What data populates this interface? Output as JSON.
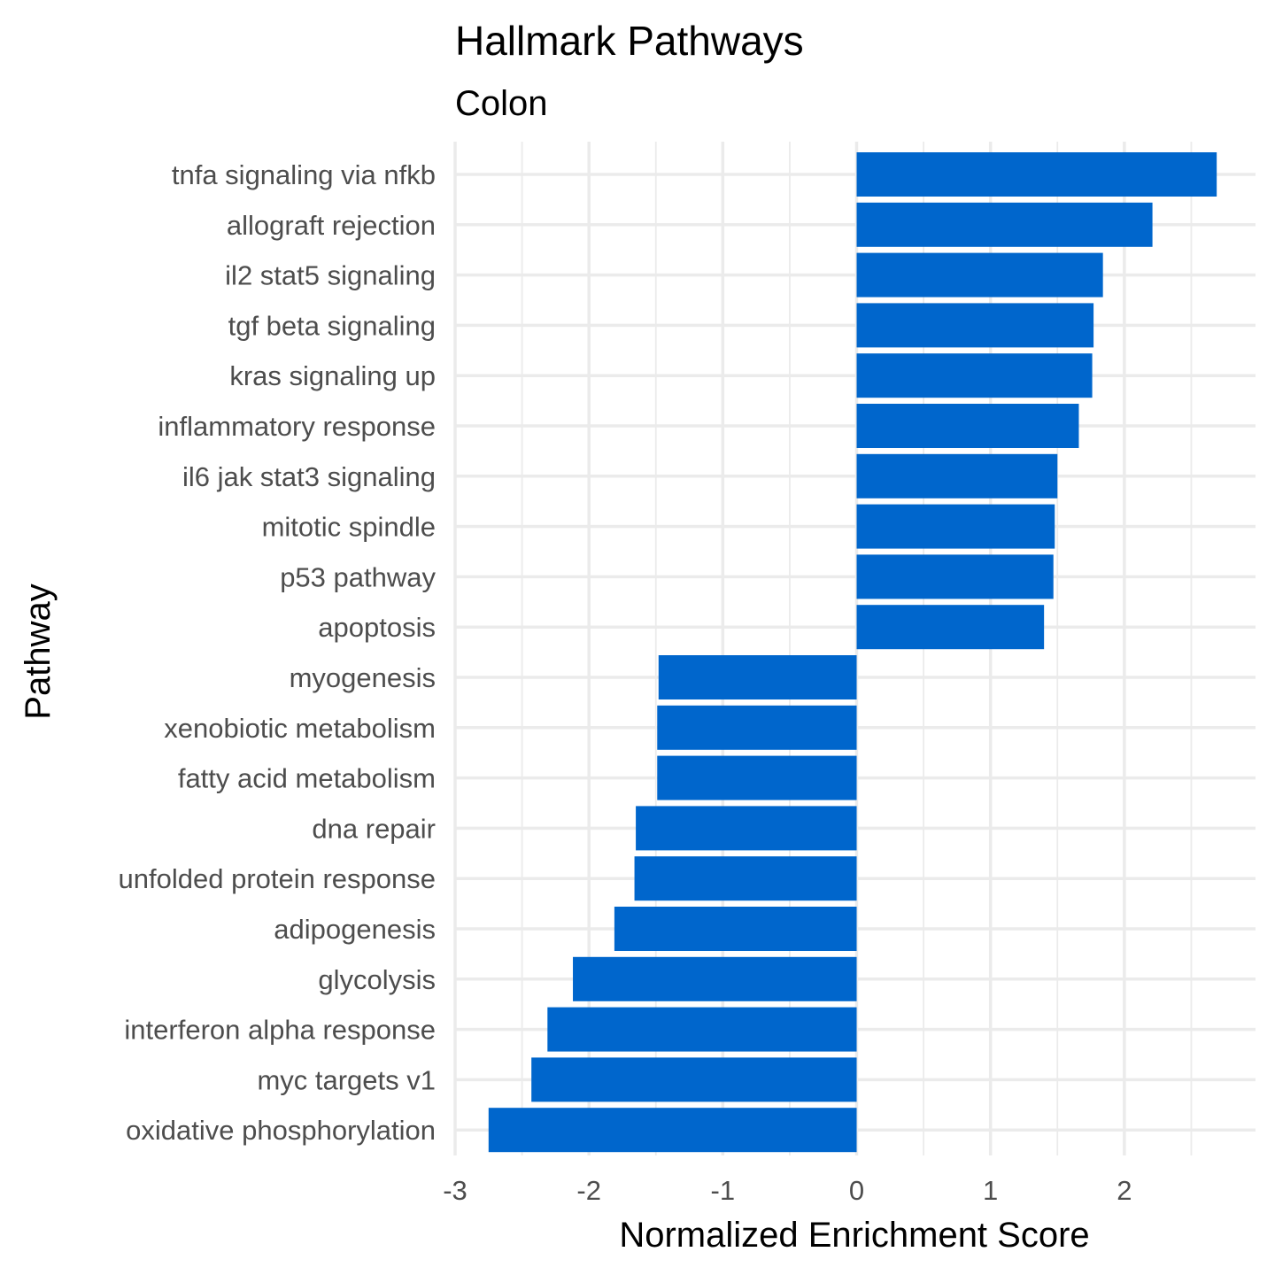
{
  "chart_data": {
    "type": "bar",
    "orientation": "horizontal",
    "title": "Hallmark Pathways",
    "subtitle": "Colon",
    "xlabel": "Normalized Enrichment Score",
    "ylabel": "Pathway",
    "categories": [
      "tnfa signaling via nfkb",
      "allograft rejection",
      "il2 stat5 signaling",
      "tgf beta signaling",
      "kras signaling up",
      "inflammatory response",
      "il6 jak stat3 signaling",
      "mitotic spindle",
      "p53 pathway",
      "apoptosis",
      "myogenesis",
      "xenobiotic metabolism",
      "fatty acid metabolism",
      "dna repair",
      "unfolded protein response",
      "adipogenesis",
      "glycolysis",
      "interferon alpha response",
      "myc targets v1",
      "oxidative phosphorylation"
    ],
    "values": [
      2.69,
      2.21,
      1.84,
      1.77,
      1.76,
      1.66,
      1.5,
      1.48,
      1.47,
      1.4,
      -1.48,
      -1.49,
      -1.49,
      -1.65,
      -1.66,
      -1.81,
      -2.12,
      -2.31,
      -2.43,
      -2.75
    ],
    "xlim": [
      -3,
      2.98
    ],
    "xticks": [
      "-3",
      "-2",
      "-1",
      "0",
      "1",
      "2"
    ],
    "grid": true,
    "bar_color": "#0066cc"
  }
}
